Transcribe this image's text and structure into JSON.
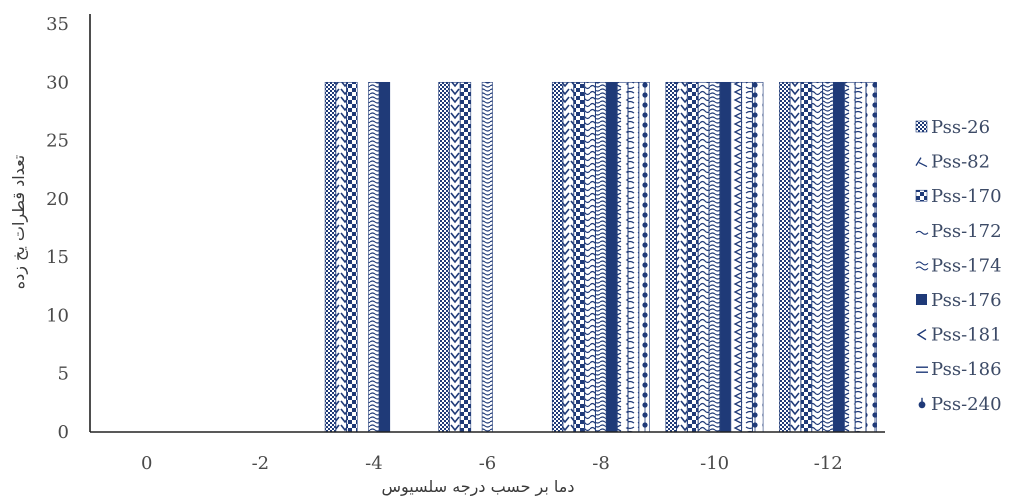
{
  "chart_data": {
    "type": "bar",
    "title": "",
    "xlabel": "دما بر حسب درجه سلسیوس",
    "ylabel": "تعداد قطرات یخ زده",
    "categories": [
      "0",
      "-2",
      "-4",
      "-6",
      "-8",
      "-10",
      "-12"
    ],
    "ylim": [
      0,
      35
    ],
    "yticks": [
      0,
      5,
      10,
      15,
      20,
      25,
      30,
      35
    ],
    "grid": false,
    "legend_position": "right",
    "series": [
      {
        "name": "Pss-26",
        "values": [
          0,
          0,
          30,
          30,
          30,
          30,
          30
        ],
        "pattern": "dots",
        "icon": "dotted-square"
      },
      {
        "name": "Pss-82",
        "values": [
          0,
          0,
          30,
          30,
          30,
          30,
          30
        ],
        "pattern": "zigzag",
        "icon": "zigzag"
      },
      {
        "name": "Pss-170",
        "values": [
          0,
          0,
          30,
          30,
          30,
          30,
          30
        ],
        "pattern": "checker",
        "icon": "checker"
      },
      {
        "name": "Pss-172",
        "values": [
          0,
          0,
          0,
          0,
          30,
          30,
          30
        ],
        "pattern": "wave",
        "icon": "wave"
      },
      {
        "name": "Pss-174",
        "values": [
          0,
          0,
          30,
          30,
          30,
          30,
          30
        ],
        "pattern": "double-wave",
        "icon": "double-wave"
      },
      {
        "name": "Pss-176",
        "values": [
          0,
          0,
          30,
          0,
          30,
          30,
          30
        ],
        "pattern": "solid",
        "icon": "solid-square"
      },
      {
        "name": "Pss-181",
        "values": [
          0,
          0,
          0,
          0,
          30,
          30,
          30
        ],
        "pattern": "chevron",
        "icon": "chevron"
      },
      {
        "name": "Pss-186",
        "values": [
          0,
          0,
          0,
          0,
          30,
          30,
          30
        ],
        "pattern": "lines",
        "icon": "double-line"
      },
      {
        "name": "Pss-240",
        "values": [
          0,
          0,
          0,
          0,
          30,
          30,
          30
        ],
        "pattern": "bead",
        "icon": "bead"
      }
    ],
    "colors": {
      "bar": "#1f3a78",
      "axis": "#222222",
      "tick_text": "#4a4a4a",
      "legend_text": "#3c4a66"
    }
  }
}
